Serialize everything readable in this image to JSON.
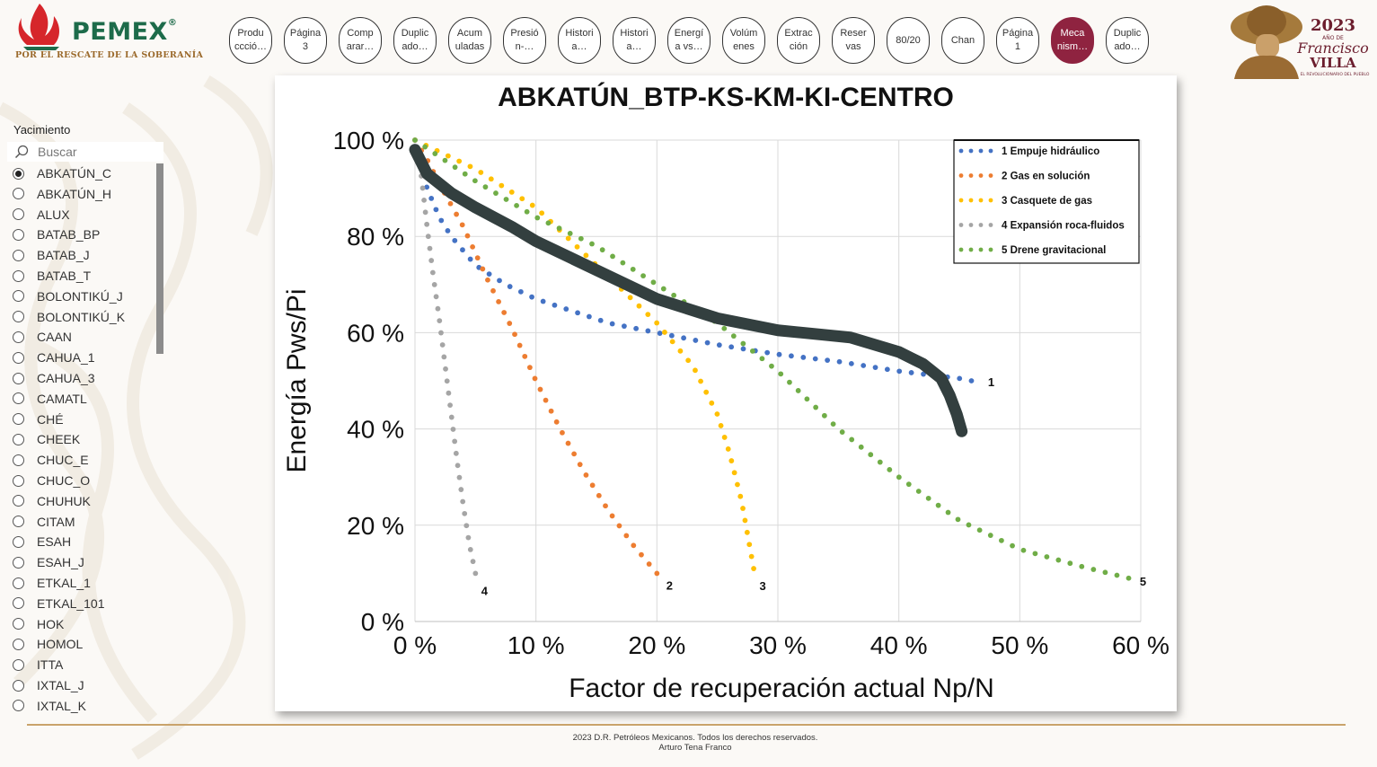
{
  "header": {
    "logo_text": "PEMEX",
    "logo_reg": "®",
    "logo_slogan": "POR EL RESCATE DE LA SOBERANÍA",
    "badge": {
      "year": "2023",
      "sub": "AÑO DE",
      "name1": "Francisco",
      "name2": "VILLA",
      "caption": "EL REVOLUCIONARIO DEL PUEBLO"
    }
  },
  "nav": [
    {
      "label": "Produ\nccció…",
      "active": false
    },
    {
      "label": "Página\n3",
      "active": false
    },
    {
      "label": "Comp\narar…",
      "active": false
    },
    {
      "label": "Duplic\nado…",
      "active": false
    },
    {
      "label": "Acum\nuladas",
      "active": false
    },
    {
      "label": "Presió\nn-…",
      "active": false
    },
    {
      "label": "Histori\na…",
      "active": false
    },
    {
      "label": "Histori\na…",
      "active": false
    },
    {
      "label": "Energí\na vs…",
      "active": false
    },
    {
      "label": "Volúm\nenes",
      "active": false
    },
    {
      "label": "Extrac\nción",
      "active": false
    },
    {
      "label": "Reser\nvas",
      "active": false
    },
    {
      "label": "80/20",
      "active": false
    },
    {
      "label": "Chan",
      "active": false
    },
    {
      "label": "Página\n1",
      "active": false
    },
    {
      "label": "Meca\nnism…",
      "active": true
    },
    {
      "label": "Duplic\nado…",
      "active": false
    }
  ],
  "slicer": {
    "title": "Yacimiento",
    "search_placeholder": "Buscar",
    "items": [
      {
        "label": "ABKATÚN_C",
        "selected": true
      },
      {
        "label": "ABKATÚN_H",
        "selected": false
      },
      {
        "label": "ALUX",
        "selected": false
      },
      {
        "label": "BATAB_BP",
        "selected": false
      },
      {
        "label": "BATAB_J",
        "selected": false
      },
      {
        "label": "BATAB_T",
        "selected": false
      },
      {
        "label": "BOLONTIKÚ_J",
        "selected": false
      },
      {
        "label": "BOLONTIKÚ_K",
        "selected": false
      },
      {
        "label": "CAAN",
        "selected": false
      },
      {
        "label": "CAHUA_1",
        "selected": false
      },
      {
        "label": "CAHUA_3",
        "selected": false
      },
      {
        "label": "CAMATL",
        "selected": false
      },
      {
        "label": "CHÉ",
        "selected": false
      },
      {
        "label": "CHEEK",
        "selected": false
      },
      {
        "label": "CHUC_E",
        "selected": false
      },
      {
        "label": "CHUC_O",
        "selected": false
      },
      {
        "label": "CHUHUK",
        "selected": false
      },
      {
        "label": "CITAM",
        "selected": false
      },
      {
        "label": "ESAH",
        "selected": false
      },
      {
        "label": "ESAH_J",
        "selected": false
      },
      {
        "label": "ETKAL_1",
        "selected": false
      },
      {
        "label": "ETKAL_101",
        "selected": false
      },
      {
        "label": "HOK",
        "selected": false
      },
      {
        "label": "HOMOL",
        "selected": false
      },
      {
        "label": "ITTA",
        "selected": false
      },
      {
        "label": "IXTAL_J",
        "selected": false
      },
      {
        "label": "IXTAL_K",
        "selected": false
      }
    ]
  },
  "chart_data": {
    "type": "scatter",
    "title": "ABKATÚN_BTP-KS-KM-KI-CENTRO",
    "xlabel": "Factor de recuperación actual Np/N",
    "ylabel": "Energía Pws/Pi",
    "xlim": [
      0,
      60
    ],
    "ylim": [
      0,
      100
    ],
    "x_ticks": [
      "0 %",
      "10 %",
      "20 %",
      "30 %",
      "40 %",
      "50 %",
      "60 %"
    ],
    "y_ticks": [
      "0 %",
      "20 %",
      "40 %",
      "60 %",
      "80 %",
      "100 %"
    ],
    "grid": true,
    "legend_position": "top-right",
    "colors": {
      "s1": "#4472c4",
      "s2": "#ed7d31",
      "s3": "#ffc000",
      "s4": "#a5a5a5",
      "s5": "#70ad47",
      "actual": "#333f3f"
    },
    "series": [
      {
        "name": "1 Empuje hidráulico",
        "end_label": "1",
        "color": "#4472c4",
        "x": [
          0,
          1,
          2,
          3,
          5,
          7.5,
          10,
          13,
          16,
          20,
          25,
          30,
          35,
          40,
          45,
          46
        ],
        "y": [
          100,
          90,
          84,
          80,
          74,
          70,
          67,
          64.5,
          62,
          60,
          57.5,
          55.5,
          54,
          52,
          50.5,
          50
        ]
      },
      {
        "name": "2 Gas en solución",
        "end_label": "2",
        "color": "#ed7d31",
        "x": [
          0,
          1,
          2,
          4,
          6,
          8,
          10,
          12,
          14,
          16,
          18,
          20
        ],
        "y": [
          100,
          96,
          91,
          82,
          71,
          61,
          50,
          40,
          31,
          23,
          16,
          10
        ]
      },
      {
        "name": "3 Casquete de gas",
        "end_label": "3",
        "color": "#ffc000",
        "x": [
          0,
          5,
          10,
          15,
          20,
          23,
          25,
          26,
          27,
          27.5,
          28
        ],
        "y": [
          100,
          94,
          86,
          74,
          62,
          53,
          43,
          35,
          25,
          18,
          11
        ]
      },
      {
        "name": "4 Expansión roca-fluidos",
        "end_label": "4",
        "color": "#a5a5a5",
        "x": [
          0,
          0.5,
          1,
          1.5,
          2,
          2.5,
          3,
          3.5,
          4,
          4.5,
          5
        ],
        "y": [
          100,
          93,
          82,
          72,
          63,
          53,
          43,
          33,
          24,
          16,
          10
        ]
      },
      {
        "name": "5 Drene gravitacional",
        "end_label": "5",
        "color": "#70ad47",
        "x": [
          0,
          5,
          10,
          15,
          20,
          25,
          30,
          35,
          40,
          45,
          50,
          55,
          59
        ],
        "y": [
          100,
          91.5,
          84,
          78,
          70,
          62,
          52,
          40,
          30,
          21,
          15,
          11.5,
          9
        ]
      },
      {
        "name": "",
        "end_label": "",
        "color": "#333f3f",
        "x": [
          0,
          1,
          3,
          5,
          8,
          10,
          15,
          20,
          25,
          30,
          34,
          36,
          40,
          42,
          43.5,
          44.2,
          44.8,
          45.2
        ],
        "y": [
          98,
          93,
          89,
          86,
          82,
          79,
          73,
          67,
          63,
          60.5,
          59.5,
          59,
          56,
          53.5,
          50.5,
          47,
          43,
          39.5
        ]
      }
    ]
  },
  "footer": {
    "line1": "2023 D.R. Petróleos Mexicanos. Todos los derechos reservados.",
    "line2": "Arturo Tena Franco"
  }
}
